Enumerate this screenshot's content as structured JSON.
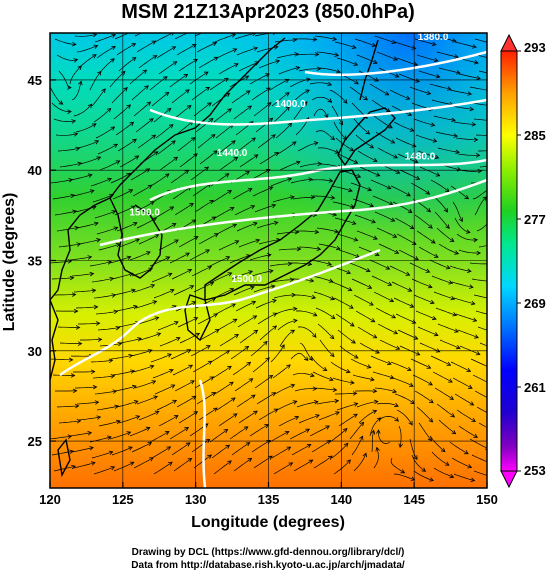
{
  "chart_data": {
    "type": "heatmap",
    "title": "MSM 21Z13Apr2023 (850.0hPa)",
    "xlabel": "Longitude (degrees)",
    "ylabel": "Latitude  (degrees)",
    "xlim": [
      120,
      150
    ],
    "ylim": [
      22.4,
      47.6
    ],
    "x_ticks": [
      120,
      125,
      130,
      135,
      140,
      145,
      150
    ],
    "y_ticks": [
      25,
      30,
      35,
      40,
      45
    ],
    "colorbar": {
      "ticks": [
        253,
        261,
        269,
        277,
        285,
        293
      ],
      "range": [
        253,
        293
      ]
    },
    "contour_labels": [
      {
        "text": "1380.0",
        "lon": 146.3,
        "lat": 47.2
      },
      {
        "text": "1400.0",
        "lon": 136.5,
        "lat": 43.5
      },
      {
        "text": "1440.0",
        "lon": 132.5,
        "lat": 40.8
      },
      {
        "text": "1480.0",
        "lon": 145.4,
        "lat": 40.6
      },
      {
        "text": "1500.0",
        "lon": 126.5,
        "lat": 37.5
      },
      {
        "text": "1500.0",
        "lon": 133.5,
        "lat": 33.8
      }
    ]
  },
  "credits": {
    "line1": "Drawing by DCL (https://www.gfd-dennou.org/library/dcl/)",
    "line2": "Data from http://database.rish.kyoto-u.ac.jp/arch/jmadata/"
  },
  "colors": {
    "colormap": [
      "#ff00ff",
      "#3b00b0",
      "#0000ff",
      "#0080ff",
      "#00e0ff",
      "#00e890",
      "#30d830",
      "#b0ff00",
      "#ffff00",
      "#ffa000",
      "#ff5000",
      "#ff0000"
    ]
  }
}
